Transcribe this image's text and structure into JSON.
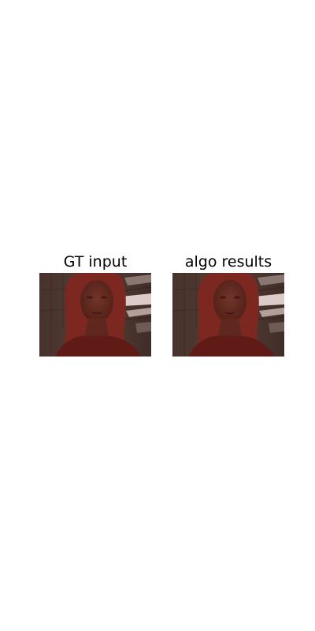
{
  "figure": {
    "panels": [
      {
        "title": "GT input"
      },
      {
        "title": "algo results"
      }
    ]
  },
  "colors": {
    "background": "#ffffff",
    "wall": "#4d443c",
    "ceiling_light": "#e8e4e2",
    "skin_shadow": "#5b2a22",
    "hair": "#7a2a22",
    "shirt": "#5c1c18",
    "segmentation_overlay": "#8b1a12"
  }
}
